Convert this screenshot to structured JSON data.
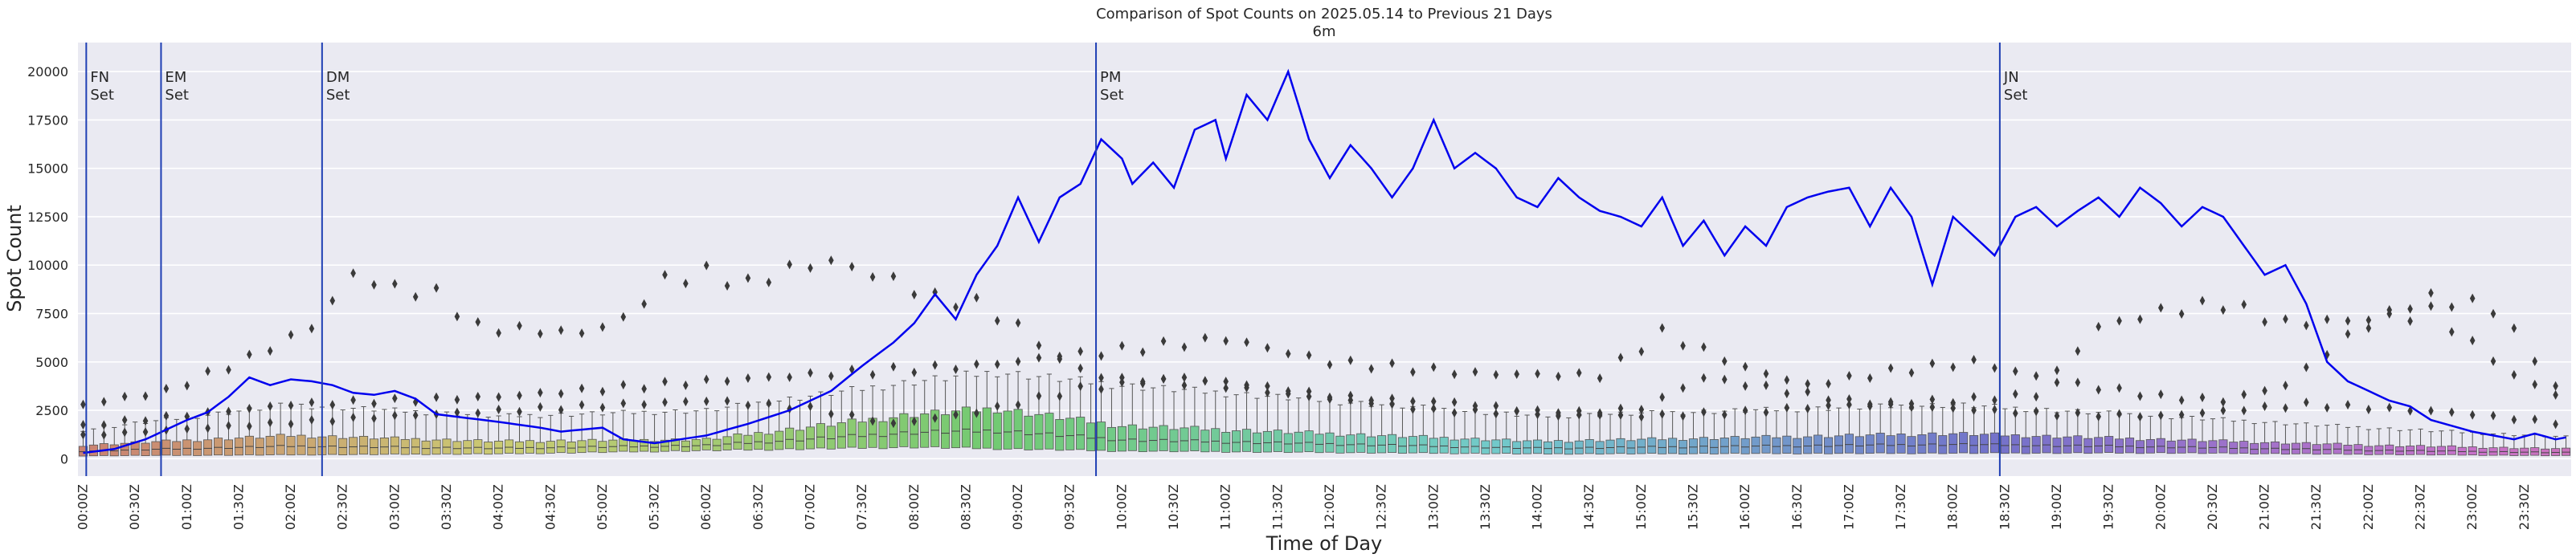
{
  "chart_data": {
    "type": "box-with-line",
    "title": "Comparison of Spot Counts on 2025.05.14 to Previous 21 Days",
    "subtitle": "6m",
    "xlabel": "Time of Day",
    "ylabel": "Spot Count",
    "ylim": [
      -900,
      21500
    ],
    "yticks": [
      0,
      2500,
      5000,
      7500,
      10000,
      12500,
      15000,
      17500,
      20000
    ],
    "ytick_labels": [
      "0",
      "2500",
      "5000",
      "7500",
      "10000",
      "12500",
      "15000",
      "17500",
      "20000"
    ],
    "n_bins": 240,
    "bin_minutes": 6,
    "xtick_labels": [
      "00:00Z",
      "00:30Z",
      "01:00Z",
      "01:30Z",
      "02:00Z",
      "02:30Z",
      "03:00Z",
      "03:30Z",
      "04:00Z",
      "04:30Z",
      "05:00Z",
      "05:30Z",
      "06:00Z",
      "06:30Z",
      "07:00Z",
      "07:30Z",
      "08:00Z",
      "08:30Z",
      "09:00Z",
      "09:30Z",
      "10:00Z",
      "10:30Z",
      "11:00Z",
      "11:30Z",
      "12:00Z",
      "12:30Z",
      "13:00Z",
      "13:30Z",
      "14:00Z",
      "14:30Z",
      "15:00Z",
      "15:30Z",
      "16:00Z",
      "16:30Z",
      "17:00Z",
      "17:30Z",
      "18:00Z",
      "18:30Z",
      "19:00Z",
      "19:30Z",
      "20:00Z",
      "20:30Z",
      "21:00Z",
      "21:30Z",
      "22:00Z",
      "22:30Z",
      "23:00Z",
      "23:30Z"
    ],
    "grid": true,
    "background": "#eaeaf2",
    "line_color": "#0000ee",
    "event_line_color": "#1f3fb4",
    "events": [
      {
        "label1": "FN",
        "label2": "Set",
        "bin": 0.8
      },
      {
        "label1": "EM",
        "label2": "Set",
        "bin": 8
      },
      {
        "label1": "DM",
        "label2": "Set",
        "bin": 23.5
      },
      {
        "label1": "PM",
        "label2": "Set",
        "bin": 98
      },
      {
        "label1": "JN",
        "label2": "Set",
        "bin": 185
      }
    ],
    "current_day_series": {
      "name": "2025.05.14",
      "anchors": [
        [
          0,
          300
        ],
        [
          3,
          500
        ],
        [
          6,
          1000
        ],
        [
          8,
          1500
        ],
        [
          10,
          2000
        ],
        [
          12,
          2400
        ],
        [
          14,
          3200
        ],
        [
          16,
          4200
        ],
        [
          18,
          3800
        ],
        [
          20,
          4100
        ],
        [
          22,
          4000
        ],
        [
          24,
          3800
        ],
        [
          26,
          3400
        ],
        [
          28,
          3300
        ],
        [
          30,
          3500
        ],
        [
          32,
          3100
        ],
        [
          34,
          2300
        ],
        [
          37,
          2100
        ],
        [
          40,
          1900
        ],
        [
          44,
          1600
        ],
        [
          46,
          1400
        ],
        [
          50,
          1600
        ],
        [
          52,
          1000
        ],
        [
          55,
          800
        ],
        [
          60,
          1200
        ],
        [
          64,
          1800
        ],
        [
          68,
          2500
        ],
        [
          70,
          3000
        ],
        [
          72,
          3500
        ],
        [
          75,
          4800
        ],
        [
          78,
          6000
        ],
        [
          80,
          7000
        ],
        [
          82,
          8500
        ],
        [
          84,
          7200
        ],
        [
          86,
          9500
        ],
        [
          88,
          11000
        ],
        [
          90,
          13500
        ],
        [
          92,
          11200
        ],
        [
          94,
          13500
        ],
        [
          96,
          14200
        ],
        [
          98,
          16500
        ],
        [
          100,
          15500
        ],
        [
          101,
          14200
        ],
        [
          103,
          15300
        ],
        [
          105,
          14000
        ],
        [
          107,
          17000
        ],
        [
          109,
          17500
        ],
        [
          110,
          15500
        ],
        [
          112,
          18800
        ],
        [
          114,
          17500
        ],
        [
          116,
          20000
        ],
        [
          118,
          16500
        ],
        [
          120,
          14500
        ],
        [
          122,
          16200
        ],
        [
          124,
          15000
        ],
        [
          126,
          13500
        ],
        [
          128,
          15000
        ],
        [
          130,
          17500
        ],
        [
          132,
          15000
        ],
        [
          134,
          15800
        ],
        [
          136,
          15000
        ],
        [
          138,
          13500
        ],
        [
          140,
          13000
        ],
        [
          142,
          14500
        ],
        [
          144,
          13500
        ],
        [
          146,
          12800
        ],
        [
          148,
          12500
        ],
        [
          150,
          12000
        ],
        [
          152,
          13500
        ],
        [
          154,
          11000
        ],
        [
          156,
          12300
        ],
        [
          158,
          10500
        ],
        [
          160,
          12000
        ],
        [
          162,
          11000
        ],
        [
          164,
          13000
        ],
        [
          166,
          13500
        ],
        [
          168,
          13800
        ],
        [
          170,
          14000
        ],
        [
          172,
          12000
        ],
        [
          174,
          14000
        ],
        [
          176,
          12500
        ],
        [
          178,
          9000
        ],
        [
          180,
          12500
        ],
        [
          182,
          11500
        ],
        [
          184,
          10500
        ],
        [
          186,
          12500
        ],
        [
          188,
          13000
        ],
        [
          190,
          12000
        ],
        [
          192,
          12800
        ],
        [
          194,
          13500
        ],
        [
          196,
          12500
        ],
        [
          198,
          14000
        ],
        [
          200,
          13200
        ],
        [
          202,
          12000
        ],
        [
          204,
          13000
        ],
        [
          206,
          12500
        ],
        [
          208,
          11000
        ],
        [
          210,
          9500
        ],
        [
          212,
          10000
        ],
        [
          214,
          8000
        ],
        [
          216,
          5000
        ],
        [
          218,
          4000
        ],
        [
          220,
          3500
        ],
        [
          222,
          3000
        ],
        [
          224,
          2700
        ],
        [
          226,
          2000
        ],
        [
          228,
          1700
        ],
        [
          230,
          1400
        ],
        [
          232,
          1200
        ],
        [
          234,
          1000
        ],
        [
          236,
          1300
        ],
        [
          238,
          1000
        ],
        [
          239,
          1100
        ]
      ]
    },
    "history_boxes": {
      "q1": [
        [
          0,
          150
        ],
        [
          40,
          250
        ],
        [
          80,
          600
        ],
        [
          100,
          400
        ],
        [
          140,
          250
        ],
        [
          200,
          300
        ],
        [
          240,
          150
        ]
      ],
      "q3": [
        [
          0,
          700
        ],
        [
          20,
          1200
        ],
        [
          40,
          900
        ],
        [
          60,
          1000
        ],
        [
          80,
          2300
        ],
        [
          88,
          2600
        ],
        [
          100,
          1700
        ],
        [
          120,
          1300
        ],
        [
          140,
          900
        ],
        [
          180,
          1300
        ],
        [
          220,
          700
        ],
        [
          240,
          500
        ]
      ],
      "whisker_hi": [
        [
          0,
          1500
        ],
        [
          20,
          2800
        ],
        [
          40,
          2200
        ],
        [
          60,
          2500
        ],
        [
          80,
          4000
        ],
        [
          88,
          4500
        ],
        [
          100,
          3800
        ],
        [
          120,
          3000
        ],
        [
          140,
          2200
        ],
        [
          180,
          2800
        ],
        [
          220,
          1600
        ],
        [
          240,
          1100
        ]
      ]
    },
    "outlier_tracks": [
      [
        [
          0,
          2800
        ],
        [
          8,
          3500
        ],
        [
          16,
          5200
        ],
        [
          22,
          6800
        ],
        [
          26,
          9500
        ],
        [
          30,
          8800
        ],
        [
          34,
          8500
        ],
        [
          38,
          6800
        ],
        [
          44,
          6600
        ],
        [
          48,
          6500
        ],
        [
          52,
          7200
        ],
        [
          56,
          9200
        ],
        [
          60,
          9600
        ],
        [
          64,
          9000
        ],
        [
          68,
          9800
        ],
        [
          72,
          10200
        ],
        [
          78,
          9200
        ],
        [
          82,
          8300
        ],
        [
          86,
          8000
        ],
        [
          90,
          6800
        ],
        [
          94,
          5200
        ],
        [
          98,
          4200
        ],
        [
          110,
          3800
        ],
        [
          116,
          3400
        ],
        [
          130,
          2500
        ],
        [
          150,
          2200
        ],
        [
          160,
          2400
        ],
        [
          170,
          2800
        ],
        [
          180,
          3000
        ],
        [
          188,
          3300
        ],
        [
          194,
          6800
        ],
        [
          200,
          7600
        ],
        [
          206,
          8000
        ],
        [
          212,
          7000
        ],
        [
          220,
          7200
        ],
        [
          226,
          8300
        ],
        [
          232,
          7800
        ],
        [
          236,
          5200
        ],
        [
          239,
          2900
        ]
      ],
      [
        [
          0,
          1700
        ],
        [
          20,
          2800
        ],
        [
          40,
          3200
        ],
        [
          60,
          4000
        ],
        [
          72,
          4400
        ],
        [
          86,
          4800
        ],
        [
          98,
          5500
        ],
        [
          110,
          6200
        ],
        [
          120,
          5000
        ],
        [
          134,
          4400
        ],
        [
          146,
          4300
        ],
        [
          152,
          6500
        ],
        [
          160,
          4700
        ],
        [
          166,
          3800
        ],
        [
          174,
          4500
        ],
        [
          182,
          5000
        ],
        [
          190,
          4000
        ],
        [
          200,
          3200
        ],
        [
          206,
          3000
        ],
        [
          212,
          3800
        ],
        [
          216,
          5500
        ],
        [
          220,
          7000
        ],
        [
          226,
          7600
        ],
        [
          234,
          4300
        ],
        [
          239,
          3100
        ]
      ],
      [
        [
          0,
          1200
        ],
        [
          30,
          2200
        ],
        [
          60,
          3000
        ],
        [
          70,
          2600
        ],
        [
          78,
          1800
        ],
        [
          86,
          2400
        ],
        [
          96,
          3600
        ],
        [
          106,
          4200
        ],
        [
          120,
          3200
        ],
        [
          132,
          2900
        ],
        [
          142,
          2300
        ],
        [
          150,
          2600
        ],
        [
          156,
          4200
        ],
        [
          164,
          3500
        ],
        [
          172,
          2800
        ],
        [
          180,
          2600
        ],
        [
          190,
          2300
        ],
        [
          200,
          2200
        ],
        [
          214,
          2800
        ],
        [
          228,
          2400
        ],
        [
          239,
          1800
        ]
      ]
    ]
  }
}
